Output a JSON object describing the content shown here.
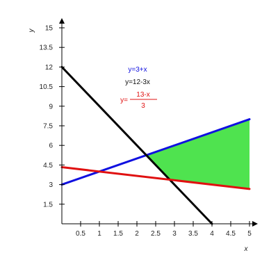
{
  "chart_data": {
    "type": "line",
    "xlabel": "x",
    "ylabel": "y",
    "xlim": [
      0,
      5
    ],
    "ylim": [
      0,
      15
    ],
    "x_ticks": [
      0.5,
      1,
      1.5,
      2,
      2.5,
      3,
      3.5,
      4,
      4.5,
      5
    ],
    "x_tick_labels": [
      "0.5",
      "1",
      "1.5",
      "2",
      "2.5",
      "3",
      "3.5",
      "4",
      "4.5",
      "5"
    ],
    "y_ticks": [
      1.5,
      3,
      4.5,
      6,
      7.5,
      9,
      10.5,
      12,
      13.5,
      15
    ],
    "y_tick_labels": [
      "1.5",
      "3",
      "4.5",
      "6",
      "7.5",
      "9",
      "10.5",
      "12",
      "13.5",
      "15"
    ],
    "grid": false,
    "series": [
      {
        "name": "y=3+x",
        "color": "#1010e0",
        "x": [
          0,
          5
        ],
        "y": [
          3,
          8
        ]
      },
      {
        "name": "y=12-3x",
        "color": "#000000",
        "x": [
          0,
          4
        ],
        "y": [
          12,
          0
        ]
      },
      {
        "name": "y=(13-x)/3",
        "color": "#e01010",
        "x": [
          0,
          5
        ],
        "y": [
          4.333,
          2.667
        ]
      }
    ],
    "shaded_region": {
      "color": "#4fe34f",
      "points": [
        [
          2.25,
          5.25
        ],
        [
          5,
          8
        ],
        [
          5,
          2.667
        ],
        [
          2.875,
          3.375
        ]
      ]
    },
    "legend": {
      "placement": "top-center",
      "line1": "y=3+x",
      "line2": "y=12-3x",
      "line3_prefix": "y=",
      "line3_numerator": "13-x",
      "line3_denominator": "3"
    }
  }
}
